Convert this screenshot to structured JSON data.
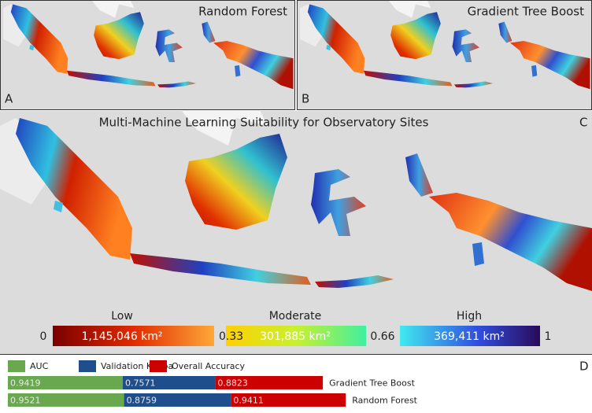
{
  "panels": [
    {
      "letter": "A",
      "title": "Random Forest"
    },
    {
      "letter": "B",
      "title": "Gradient Tree Boost"
    },
    {
      "letter": "C",
      "title": "Multi-Machine Learning Suitability for Observatory Sites"
    },
    {
      "letter": "D"
    }
  ],
  "legend": {
    "classes": [
      {
        "name": "Low",
        "area": "1,145,046 km²"
      },
      {
        "name": "Moderate",
        "area": "301,885 km²"
      },
      {
        "name": "High",
        "area": "369,411 km²"
      }
    ],
    "breaks": [
      0,
      0.33,
      0.66,
      1
    ]
  },
  "chart_data": {
    "type": "bar",
    "stacked": true,
    "orientation": "horizontal",
    "categories": [
      "Gradient Tree Boost",
      "Random Forest"
    ],
    "series": [
      {
        "name": "AUC",
        "color": "#6aa84f",
        "values": [
          0.9419,
          0.9521
        ]
      },
      {
        "name": "Validation Kappa",
        "color": "#1f4e8c",
        "values": [
          0.7571,
          0.8759
        ]
      },
      {
        "name": "Overall Accuracy",
        "color": "#cc0000",
        "values": [
          0.8823,
          0.9411
        ]
      }
    ],
    "xlim": [
      0,
      3
    ]
  }
}
